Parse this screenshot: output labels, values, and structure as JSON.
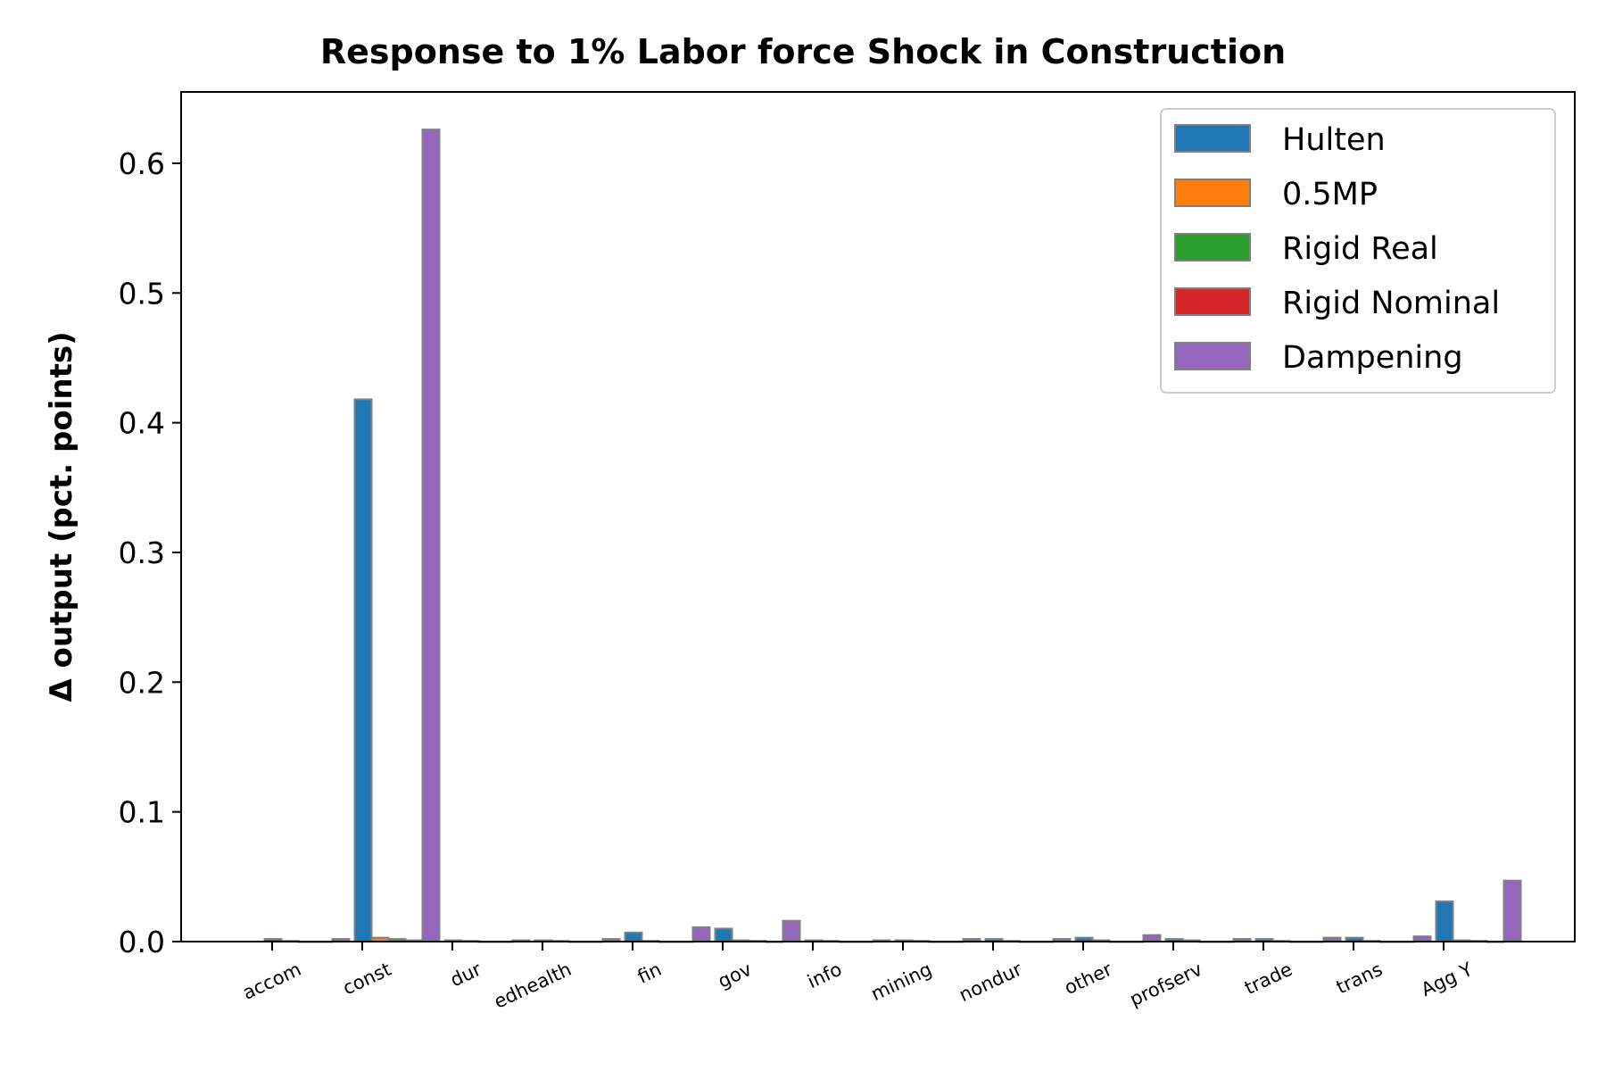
{
  "chart_data": {
    "type": "bar",
    "title": "Response to 1% Labor force Shock in Construction",
    "xlabel": "",
    "ylabel": "Δ output (pct. points)",
    "ylim": [
      0,
      0.655
    ],
    "yticks": [
      "0.0",
      "0.1",
      "0.2",
      "0.3",
      "0.4",
      "0.5",
      "0.6"
    ],
    "grid": false,
    "legend_position": "top-right",
    "categories": [
      "accom",
      "const",
      "dur",
      "edhealth",
      "fin",
      "gov",
      "info",
      "mining",
      "nondur",
      "other",
      "profserv",
      "trade",
      "trans",
      "Agg Y"
    ],
    "series": [
      {
        "name": "Hulten",
        "color": "#1f77b4",
        "values": [
          0.002,
          0.418,
          0.001,
          0.001,
          0.007,
          0.01,
          0.001,
          0.001,
          0.002,
          0.003,
          0.002,
          0.002,
          0.003,
          0.031
        ]
      },
      {
        "name": "0.5MP",
        "color": "#ff7f0e",
        "values": [
          0.0005,
          0.003,
          0.0005,
          0.0005,
          0.0005,
          0.001,
          0.0005,
          0.0005,
          0.0005,
          0.001,
          0.001,
          0.0005,
          0.0005,
          0.001
        ]
      },
      {
        "name": "Rigid Real",
        "color": "#2ca02c",
        "values": [
          0.0,
          0.002,
          0.0,
          0.0,
          0.0,
          0.0005,
          0.0,
          0.0,
          0.0,
          0.0,
          0.0,
          0.0,
          0.0,
          0.0005
        ]
      },
      {
        "name": "Rigid Nominal",
        "color": "#d62728",
        "values": [
          0.0,
          0.001,
          0.0,
          0.0,
          0.0,
          0.0,
          0.0,
          0.0,
          0.0,
          0.0,
          0.0,
          0.0,
          0.0,
          0.0
        ]
      },
      {
        "name": "Dampening",
        "color": "#9467bd",
        "values": [
          0.002,
          0.626,
          0.001,
          0.002,
          0.011,
          0.016,
          0.001,
          0.002,
          0.002,
          0.005,
          0.002,
          0.003,
          0.004,
          0.047
        ]
      }
    ]
  }
}
